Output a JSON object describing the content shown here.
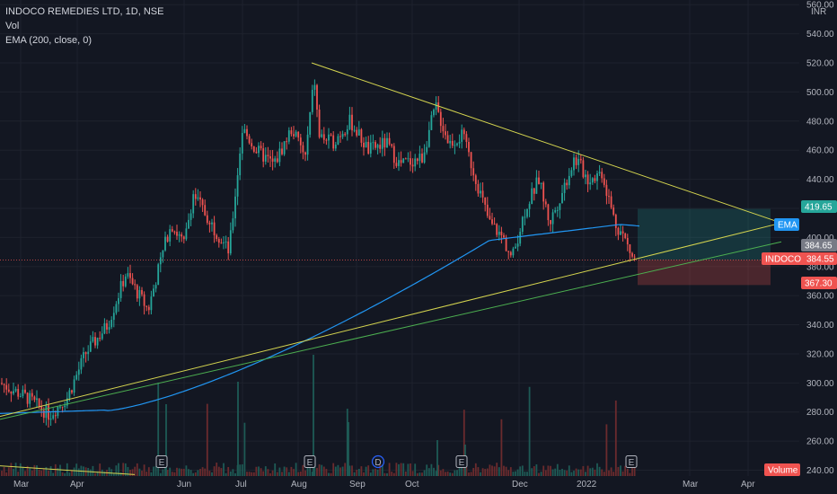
{
  "legend": {
    "symbol": "INDOCO REMEDIES LTD, 1D, NSE",
    "vol": "Vol",
    "ema": "EMA (200, close, 0)"
  },
  "currency": "INR",
  "colors": {
    "background": "#131722",
    "up": "#26a69a",
    "down": "#ef5350",
    "ema": "#2196f3",
    "trendline": "#d4d44f",
    "support": "#4caf50",
    "grid": "#1e222d"
  },
  "chart_data": {
    "type": "candlestick",
    "y_axis_ticks": [
      "240.00",
      "260.00",
      "280.00",
      "300.00",
      "320.00",
      "340.00",
      "360.00",
      "380.00",
      "400.00",
      "420.00",
      "440.00",
      "460.00",
      "480.00",
      "500.00",
      "520.00",
      "540.00",
      "560.00"
    ],
    "ylim": [
      236,
      562
    ],
    "x_axis_labels": [
      "Mar",
      "Apr",
      "Jun",
      "Jul",
      "Aug",
      "Sep",
      "Oct",
      "Dec",
      "2022",
      "Mar",
      "Apr"
    ],
    "price_tags": [
      {
        "label": "",
        "value": "419.65",
        "color": "#26a69a"
      },
      {
        "label": "EMA",
        "value": "",
        "color": "#2196f3"
      },
      {
        "label": "",
        "value": "384.65",
        "color": "#787b86"
      },
      {
        "label": "INDOCO",
        "value": "384.55",
        "color": "#ef5350"
      },
      {
        "label": "",
        "value": "367.30",
        "color": "#ef5350"
      },
      {
        "label": "Volume",
        "value": "",
        "color": "#ef5350"
      }
    ],
    "event_markers": [
      "E",
      "E",
      "D",
      "E",
      "E"
    ],
    "trendlines": [
      {
        "name": "upper-resistance",
        "from": {
          "x": "Aug",
          "y": 520
        },
        "to": {
          "x": "Apr",
          "y": 410
        }
      },
      {
        "name": "lower-support",
        "from": {
          "x": "Mar",
          "y": 277
        },
        "to": {
          "x": "Apr",
          "y": 410
        }
      },
      {
        "name": "green-support",
        "from": {
          "x": "Mar",
          "y": 275
        },
        "to": {
          "x": "Apr",
          "y": 397
        }
      }
    ],
    "position": {
      "entry": 384.55,
      "target": 419.65,
      "stop": 367.3
    }
  }
}
